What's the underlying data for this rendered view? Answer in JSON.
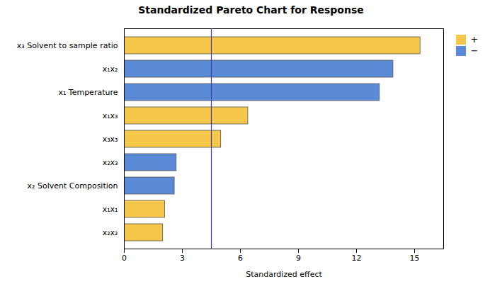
{
  "chart_data": {
    "type": "bar",
    "orientation": "horizontal",
    "title": "Standardized Pareto Chart for Response",
    "xlabel": "Standardized effect",
    "categories": [
      "x₂x₂",
      "x₁x₁",
      "x₂ Solvent Composition",
      "x₂x₃",
      "x₃x₃",
      "x₁x₃",
      "x₁ Temperature",
      "x₁x₂",
      "x₃ Solvent to sample ratio"
    ],
    "series": [
      {
        "name": "+",
        "color": "#F5C84C",
        "values": [
          2.0,
          2.1,
          null,
          null,
          5.0,
          6.4,
          null,
          null,
          15.3
        ]
      },
      {
        "name": "−",
        "color": "#5B8BD6",
        "values": [
          null,
          null,
          2.6,
          2.7,
          null,
          null,
          13.2,
          13.9,
          null
        ]
      }
    ],
    "reference_line": {
      "value": 4.5,
      "color": "#3A3AB0"
    },
    "xlim": [
      0,
      16.5
    ],
    "xticks": [
      0,
      3,
      6,
      9,
      12,
      15
    ],
    "grid": false,
    "legend": "upper right"
  }
}
